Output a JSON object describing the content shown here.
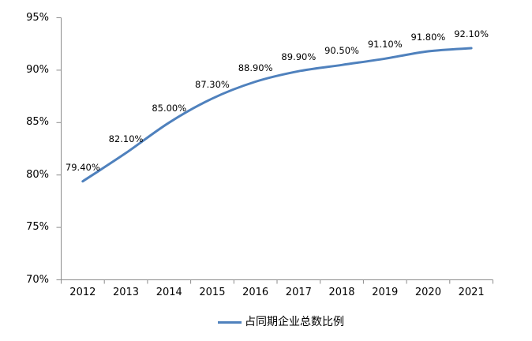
{
  "chart_data": {
    "type": "line",
    "title": "",
    "xlabel": "",
    "ylabel": "",
    "categories": [
      "2012",
      "2013",
      "2014",
      "2015",
      "2016",
      "2017",
      "2018",
      "2019",
      "2020",
      "2021"
    ],
    "series": [
      {
        "name": "占同期企业总数比例",
        "values": [
          79.4,
          82.1,
          85.0,
          87.3,
          88.9,
          89.9,
          90.5,
          91.1,
          91.8,
          92.1
        ]
      }
    ],
    "data_labels": [
      "79.40%",
      "82.10%",
      "85.00%",
      "87.30%",
      "88.90%",
      "89.90%",
      "90.50%",
      "91.10%",
      "91.80%",
      "92.10%"
    ],
    "y_tick_labels": [
      "95%",
      "90%",
      "85%",
      "80%",
      "75%",
      "70%"
    ],
    "y_tick_values": [
      95,
      90,
      85,
      80,
      75,
      70
    ],
    "ylim": [
      70,
      95
    ],
    "grid": false,
    "smooth_line": true,
    "markers": false,
    "legend_position": "bottom-center",
    "line_color": "#4F81BD",
    "axis_color": "#8C8C8C",
    "label_color": "#000000",
    "background": "#FFFFFF"
  },
  "legend": {
    "label": "占同期企业总数比例"
  }
}
